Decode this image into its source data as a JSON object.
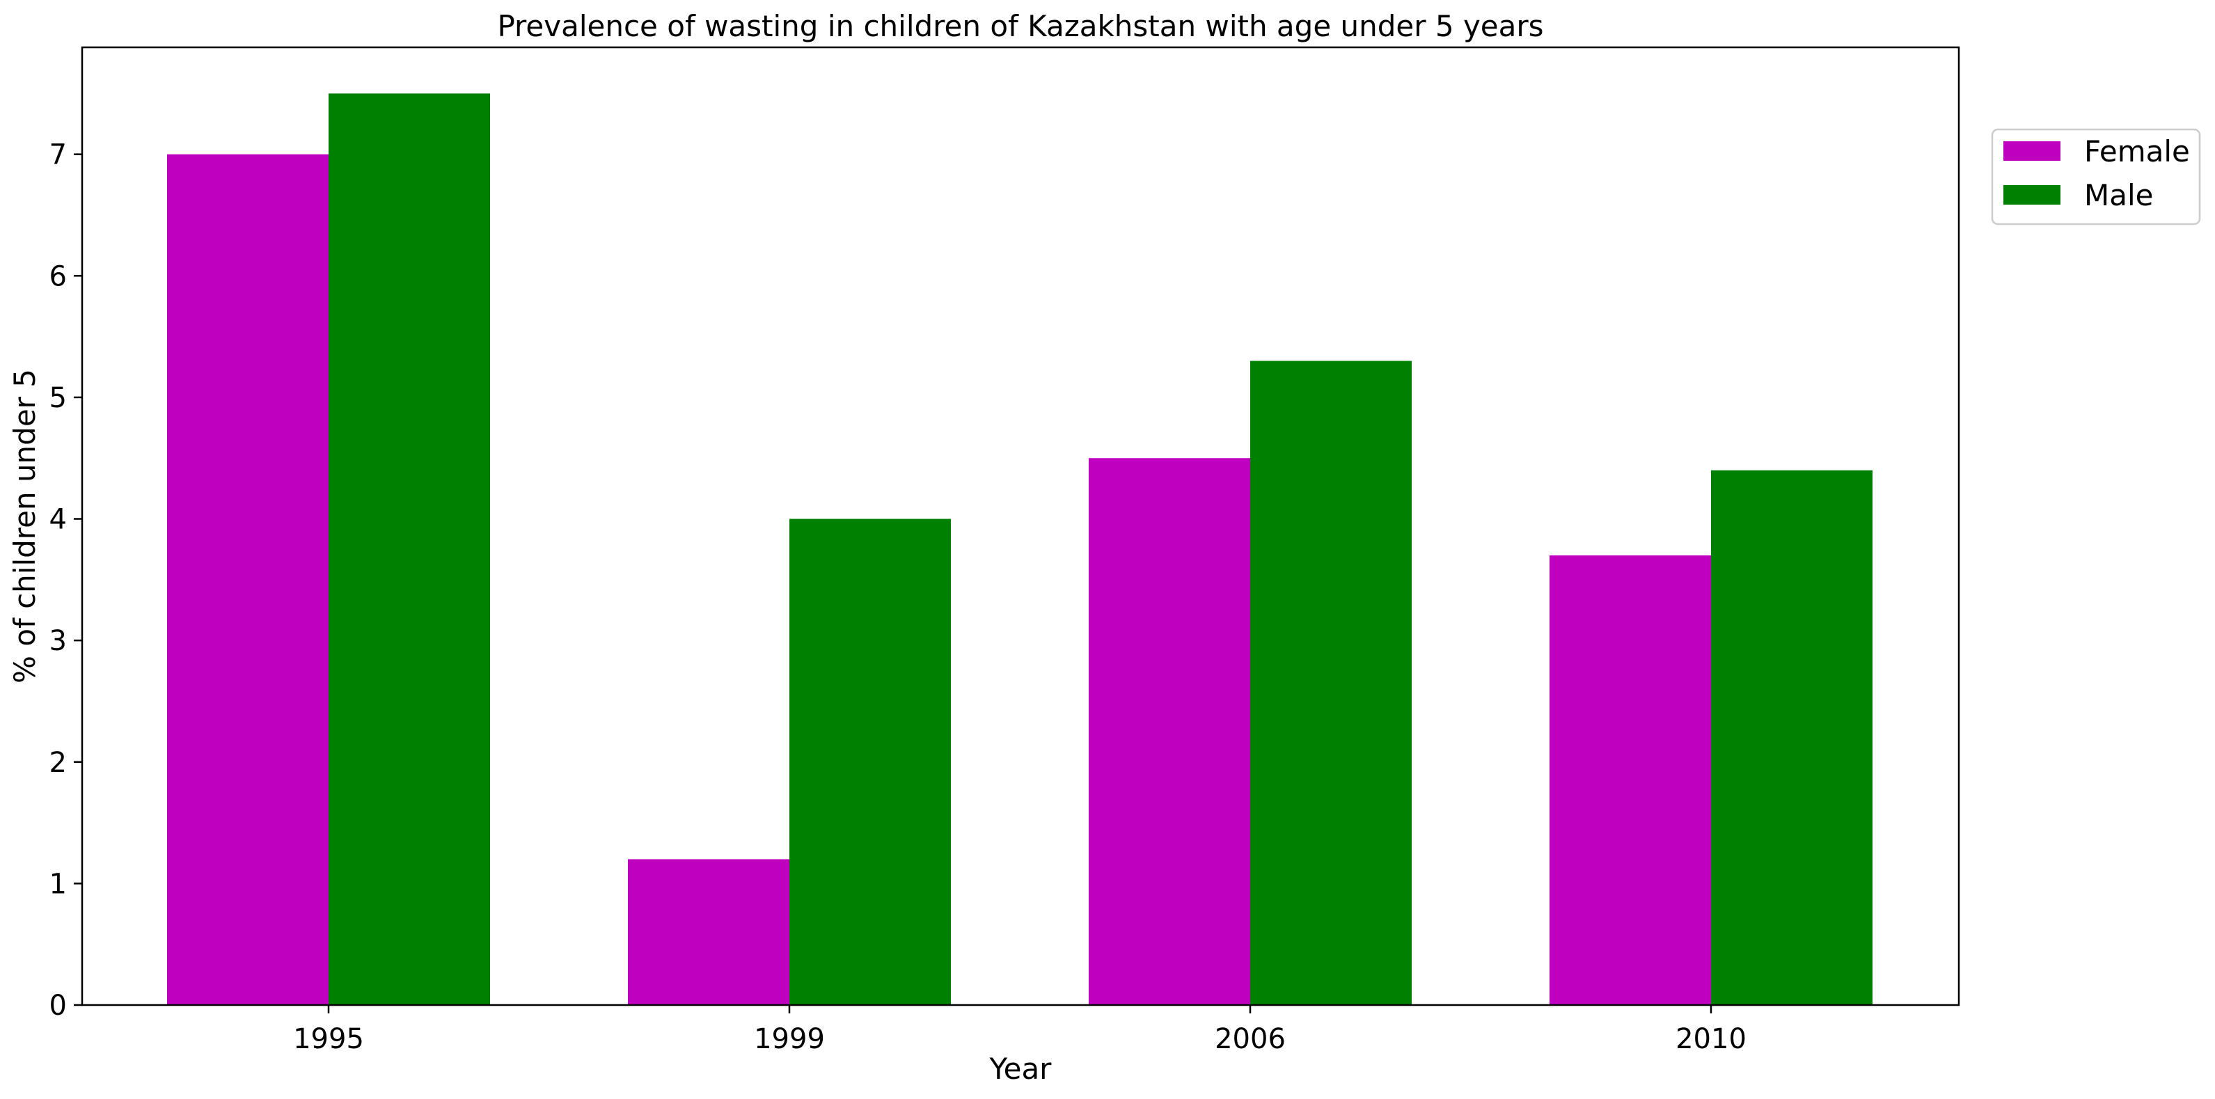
{
  "chart_data": {
    "type": "bar",
    "title": "Prevalence of wasting in children of Kazakhstan with age under 5 years",
    "xlabel": "Year",
    "ylabel": "% of children under 5",
    "categories": [
      "1995",
      "1999",
      "2006",
      "2010"
    ],
    "series": [
      {
        "name": "Female",
        "color": "#bf00bf",
        "values": [
          7.0,
          1.2,
          4.5,
          3.7
        ]
      },
      {
        "name": "Male",
        "color": "#008000",
        "values": [
          7.5,
          4.0,
          5.3,
          4.4
        ]
      }
    ],
    "ylim": [
      0,
      7.88
    ],
    "yticks": [
      0,
      1,
      2,
      3,
      4,
      5,
      6,
      7
    ],
    "grid": false,
    "legend_position": "upper-right-outside"
  }
}
